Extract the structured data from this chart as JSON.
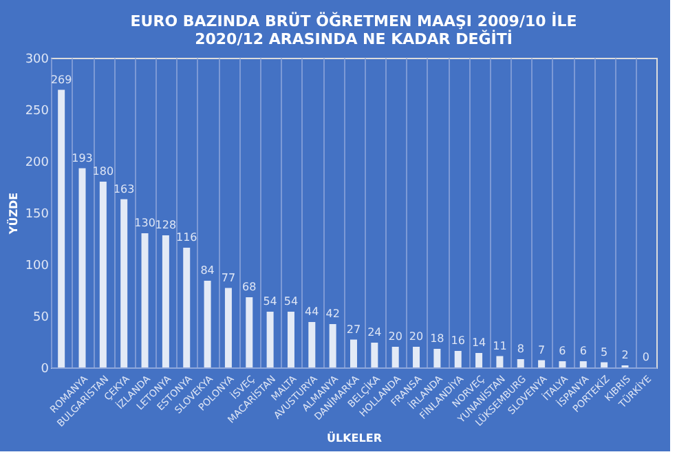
{
  "chart_data": {
    "type": "bar",
    "title": [
      "EURO BAZINDA BRÜT ÖĞRETMEN MAAŞI 2009/10 İLE",
      "2020/12 ARASINDA NE KADAR DEĞİTİ"
    ],
    "xlabel": "ÜLKELER",
    "ylabel": "YÜZDE",
    "categories": [
      null,
      "ROMANYA",
      "BULGARİSTAN",
      "ÇEKYA",
      "İZLANDA",
      "LETONYA",
      "ESTONYA",
      "SLOVEKYA",
      "POLONYA",
      "İSVEÇ",
      "MACARİSTAN",
      "MALTA",
      "AVUSTURYA",
      "ALMANYA",
      "DANİMARKA",
      "BELÇİKA",
      "HOLLANDA",
      "FRANSA",
      "İRLANDA",
      "FİNLANDİYA",
      "NORVEÇ",
      "YUNANİSTAN",
      "LÜKSEMBURG",
      "SLOVENYA",
      "İTALYA",
      "İSPANYA",
      "PORTEKİZ",
      "KIBRIS",
      "TÜRKİYE"
    ],
    "values": [
      269,
      193,
      180,
      163,
      130,
      128,
      116,
      84,
      77,
      68,
      54,
      54,
      44,
      42,
      27,
      24,
      20,
      20,
      18,
      16,
      14,
      11,
      8,
      7,
      6,
      6,
      5,
      2,
      0
    ],
    "color": "#ffffff",
    "ylim": [
      0,
      300
    ],
    "yticks": [
      0,
      50,
      100,
      150,
      200,
      250,
      300
    ],
    "grid": "x",
    "data_labels": true
  }
}
